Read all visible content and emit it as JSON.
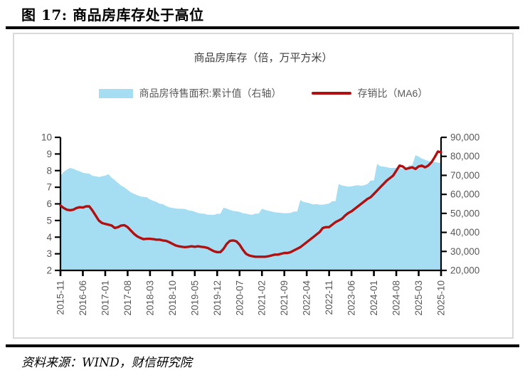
{
  "figure": {
    "caption": "图 17: 商品房库存处于高位",
    "source": "资料来源：WIND，财信研究院"
  },
  "chart": {
    "title": "商品房库存（倍，万平方米）",
    "legend_area_label": "商品房待售面积:累计值（右轴）",
    "legend_line_label": "存销比（MA6）",
    "colors": {
      "area": "#a5def2",
      "line": "#b21010",
      "axis": "#000000",
      "tick_text": "#595959"
    }
  },
  "chart_data": {
    "type": "area+line",
    "title": "商品房库存（倍，万平方米）",
    "legend_position": "top",
    "grid": false,
    "x_start": "2015-11",
    "x_frequency": "monthly",
    "x_tick_labels": [
      "2015-11",
      "2016-06",
      "2017-01",
      "2017-08",
      "2018-03",
      "2018-10",
      "2019-05",
      "2019-12",
      "2020-07",
      "2021-02",
      "2021-09",
      "2022-04",
      "2022-11",
      "2023-06",
      "2024-01",
      "2024-08",
      "2025-03",
      "2025-10"
    ],
    "x_tick_indices": [
      0,
      7,
      14,
      21,
      28,
      35,
      42,
      49,
      56,
      63,
      70,
      77,
      84,
      91,
      98,
      105,
      112,
      119
    ],
    "left_axis": {
      "min": 2,
      "max": 10,
      "ticks": [
        {
          "v": 2,
          "label": "2"
        },
        {
          "v": 3,
          "label": "3"
        },
        {
          "v": 4,
          "label": "4"
        },
        {
          "v": 5,
          "label": "5"
        },
        {
          "v": 6,
          "label": "6"
        },
        {
          "v": 7,
          "label": "7"
        },
        {
          "v": 8,
          "label": "8"
        },
        {
          "v": 9,
          "label": "9"
        },
        {
          "v": 10,
          "label": "10"
        }
      ]
    },
    "right_axis": {
      "min": 20000,
      "max": 90000,
      "ticks": [
        {
          "v": 20000,
          "label": "20,000"
        },
        {
          "v": 30000,
          "label": "30,000"
        },
        {
          "v": 40000,
          "label": "40,000"
        },
        {
          "v": 50000,
          "label": "50,000"
        },
        {
          "v": 60000,
          "label": "60,000"
        },
        {
          "v": 70000,
          "label": "70,000"
        },
        {
          "v": 80000,
          "label": "80,000"
        },
        {
          "v": 90000,
          "label": "90,000"
        }
      ]
    },
    "series": [
      {
        "name": "商品房待售面积:累计值（右轴）",
        "type": "area",
        "axis": "right",
        "color": "#a5def2",
        "values": [
          69600,
          71900,
          73000,
          73900,
          73500,
          72700,
          72200,
          71400,
          71100,
          70900,
          69800,
          69500,
          69100,
          69500,
          69900,
          70600,
          68800,
          67500,
          66000,
          64600,
          63700,
          62400,
          61100,
          60300,
          59600,
          58900,
          58700,
          58500,
          57300,
          56600,
          56000,
          55100,
          54900,
          53900,
          53200,
          52900,
          52600,
          52400,
          52400,
          52300,
          51600,
          51400,
          50900,
          50200,
          49900,
          49800,
          49300,
          49300,
          49200,
          49800,
          49800,
          53000,
          52500,
          51800,
          51300,
          51100,
          50800,
          50100,
          49900,
          49500,
          49300,
          49900,
          49900,
          52400,
          51800,
          51400,
          51000,
          50600,
          50400,
          50300,
          50100,
          50100,
          50300,
          51000,
          51000,
          57000,
          56100,
          55700,
          55300,
          54700,
          54900,
          54600,
          54600,
          54900,
          55200,
          56400,
          56400,
          65500,
          64700,
          64400,
          64100,
          64200,
          64600,
          64800,
          64500,
          64800,
          65500,
          67300,
          67300,
          76000,
          74800,
          74600,
          74300,
          73900,
          73900,
          73900,
          73900,
          73500,
          73300,
          75300,
          75300,
          80600,
          79900,
          78900,
          78200,
          77600,
          77300,
          77000,
          76700,
          76500
        ]
      },
      {
        "name": "存销比（MA6）",
        "type": "line",
        "axis": "left",
        "color": "#b21010",
        "values": [
          5.9,
          5.75,
          5.65,
          5.62,
          5.65,
          5.75,
          5.8,
          5.78,
          5.85,
          5.85,
          5.6,
          5.3,
          5.0,
          4.85,
          4.8,
          4.75,
          4.7,
          4.55,
          4.6,
          4.7,
          4.72,
          4.6,
          4.4,
          4.2,
          4.05,
          3.95,
          3.88,
          3.9,
          3.9,
          3.88,
          3.85,
          3.85,
          3.8,
          3.78,
          3.7,
          3.6,
          3.5,
          3.45,
          3.42,
          3.4,
          3.42,
          3.45,
          3.42,
          3.45,
          3.42,
          3.4,
          3.35,
          3.25,
          3.15,
          3.1,
          3.1,
          3.3,
          3.6,
          3.78,
          3.8,
          3.75,
          3.55,
          3.25,
          3.0,
          2.9,
          2.85,
          2.82,
          2.82,
          2.82,
          2.82,
          2.85,
          2.9,
          2.95,
          2.95,
          3.0,
          3.05,
          3.05,
          3.1,
          3.2,
          3.3,
          3.4,
          3.55,
          3.7,
          3.85,
          4.0,
          4.15,
          4.3,
          4.55,
          4.6,
          4.6,
          4.75,
          4.9,
          5.0,
          5.1,
          5.3,
          5.45,
          5.55,
          5.7,
          5.85,
          6.0,
          6.15,
          6.3,
          6.4,
          6.6,
          6.8,
          7.0,
          7.2,
          7.4,
          7.55,
          7.7,
          8.0,
          8.3,
          8.25,
          8.1,
          8.15,
          8.2,
          8.1,
          8.25,
          8.3,
          8.2,
          8.3,
          8.5,
          8.8,
          9.15,
          9.1
        ]
      }
    ]
  }
}
